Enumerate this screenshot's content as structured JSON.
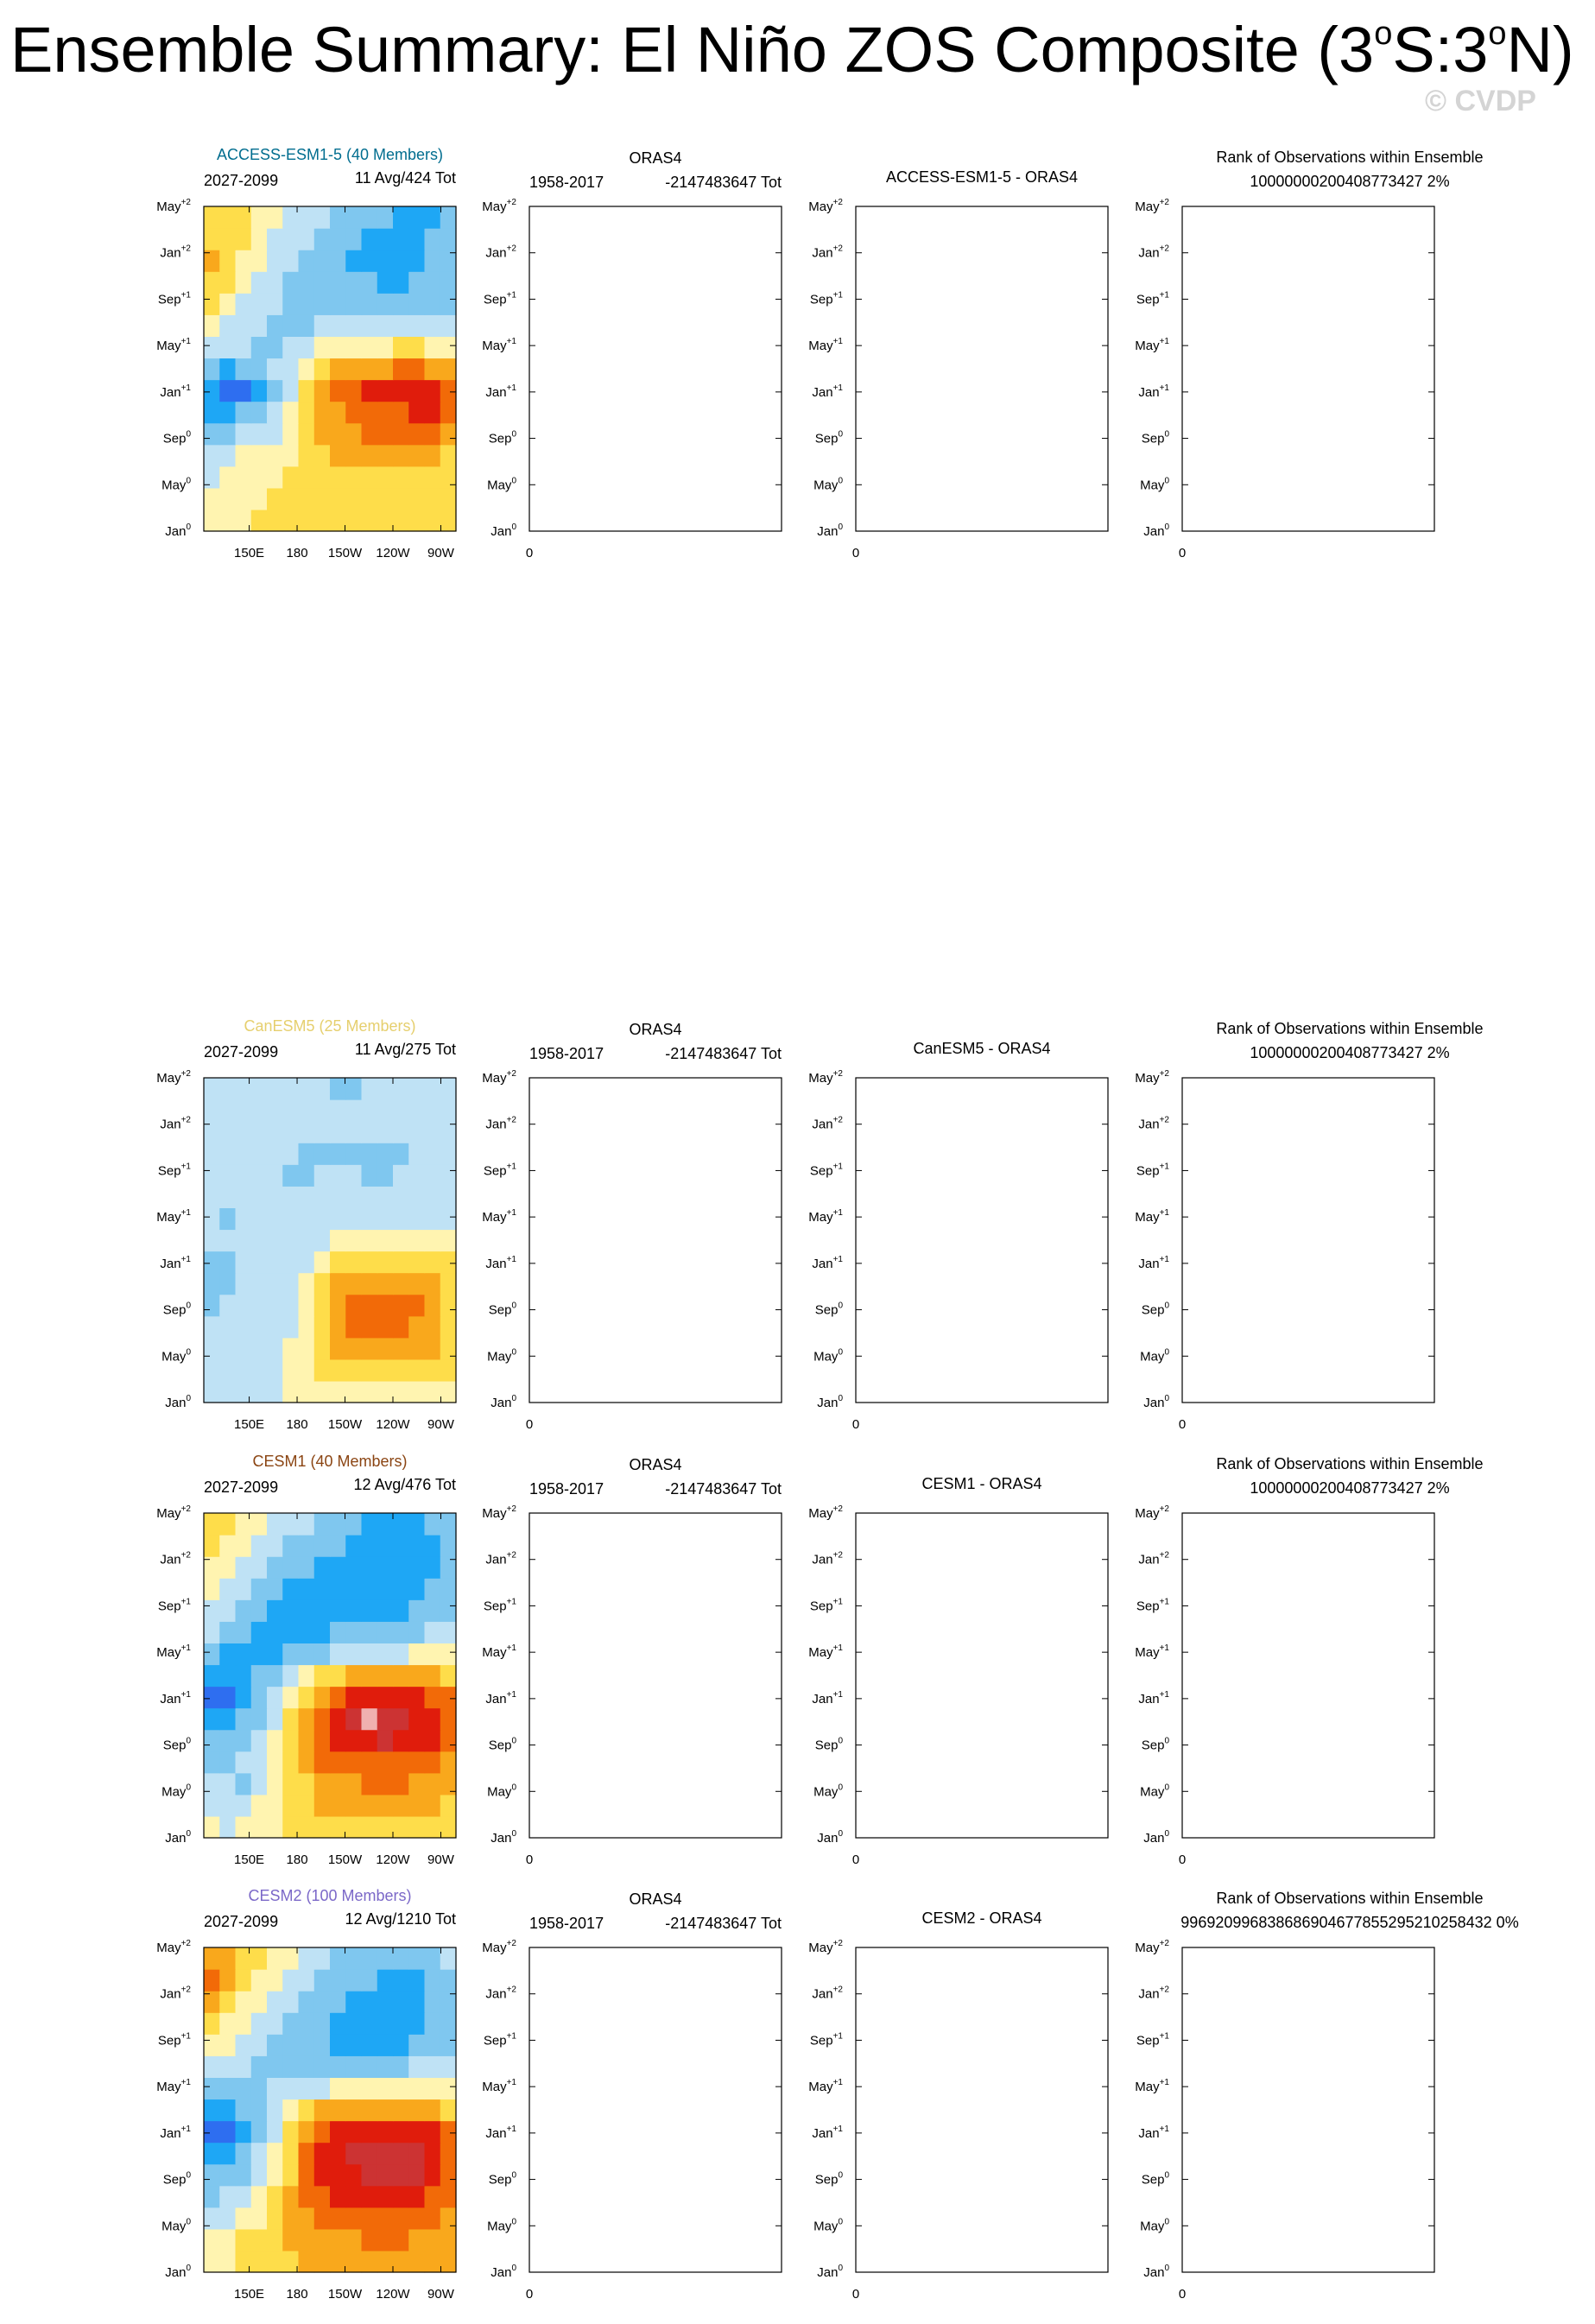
{
  "page": {
    "title_parts": [
      "Ensemble Summary: El Niño ZOS Composite (3",
      "o",
      "S:3",
      "o",
      "N)"
    ],
    "watermark": "© CVDP"
  },
  "colors": {
    "scale": [
      "#1f2bd6",
      "#2e6ef0",
      "#1ea7f5",
      "#7fc7ef",
      "#bfe2f5",
      "#fff4b0",
      "#fedd4a",
      "#f9a81c",
      "#f26a08",
      "#e01c0c",
      "#cc3333",
      "#f0b0b0"
    ],
    "ink": "#000000",
    "grid": "#888888"
  },
  "axes": {
    "y_tick_labels": [
      {
        "base": "Jan",
        "sup": "0"
      },
      {
        "base": "May",
        "sup": "0"
      },
      {
        "base": "Sep",
        "sup": "0"
      },
      {
        "base": "Jan",
        "sup": "+1"
      },
      {
        "base": "May",
        "sup": "+1"
      },
      {
        "base": "Sep",
        "sup": "+1"
      },
      {
        "base": "Jan",
        "sup": "+2"
      },
      {
        "base": "May",
        "sup": "+2"
      }
    ],
    "model_x_tick_labels": [
      "150E",
      "180",
      "150W",
      "120W",
      "90W"
    ],
    "empty_x_tick_label": "0"
  },
  "chart_data": [
    {
      "type": "heatmap",
      "title": "ACCESS-ESM1-5 (40 Members)",
      "title_color": "#006d8f",
      "left_label": "2027-2099",
      "right_label": "11 Avg/424 Tot",
      "xlabel": "",
      "ylabel": "",
      "x": [
        "130E",
        "140E",
        "150E",
        "160E",
        "170E",
        "180",
        "170W",
        "160W",
        "150W",
        "140W",
        "130W",
        "120W",
        "110W",
        "100W",
        "90W",
        "80W"
      ],
      "y": [
        "Jan0",
        "Mar0",
        "May0",
        "Jul0",
        "Sep0",
        "Nov0",
        "Jan+1",
        "Mar+1",
        "May+1",
        "Jul+1",
        "Sep+1",
        "Nov+1",
        "Jan+2",
        "Mar+2",
        "May+2"
      ],
      "z": [
        [
          5,
          5,
          5,
          6,
          6,
          6,
          6,
          6,
          6,
          6,
          6,
          6,
          6,
          6,
          6,
          6
        ],
        [
          5,
          5,
          5,
          5,
          6,
          6,
          6,
          6,
          6,
          6,
          6,
          6,
          6,
          6,
          6,
          6
        ],
        [
          4,
          5,
          5,
          5,
          5,
          6,
          6,
          6,
          6,
          6,
          6,
          6,
          6,
          6,
          6,
          6
        ],
        [
          4,
          4,
          5,
          5,
          5,
          5,
          6,
          6,
          7,
          7,
          7,
          7,
          7,
          7,
          7,
          6
        ],
        [
          3,
          3,
          4,
          4,
          4,
          5,
          6,
          7,
          7,
          7,
          8,
          8,
          8,
          8,
          8,
          7
        ],
        [
          2,
          2,
          3,
          3,
          4,
          5,
          6,
          7,
          7,
          8,
          8,
          8,
          8,
          9,
          9,
          8
        ],
        [
          2,
          1,
          1,
          2,
          3,
          4,
          6,
          7,
          8,
          8,
          9,
          9,
          9,
          9,
          9,
          8
        ],
        [
          3,
          2,
          3,
          3,
          4,
          4,
          5,
          6,
          7,
          7,
          7,
          7,
          8,
          8,
          7,
          7
        ],
        [
          4,
          4,
          4,
          3,
          3,
          4,
          4,
          5,
          5,
          5,
          5,
          5,
          6,
          6,
          5,
          5
        ],
        [
          5,
          4,
          4,
          4,
          3,
          3,
          3,
          4,
          4,
          4,
          4,
          4,
          4,
          4,
          4,
          4
        ],
        [
          6,
          5,
          4,
          4,
          4,
          3,
          3,
          3,
          3,
          3,
          3,
          3,
          3,
          3,
          3,
          3
        ],
        [
          6,
          6,
          5,
          4,
          4,
          3,
          3,
          3,
          3,
          3,
          3,
          2,
          2,
          3,
          3,
          3
        ],
        [
          7,
          6,
          5,
          5,
          4,
          4,
          3,
          3,
          3,
          2,
          2,
          2,
          2,
          2,
          3,
          3
        ],
        [
          6,
          6,
          6,
          5,
          4,
          4,
          4,
          3,
          3,
          3,
          2,
          2,
          2,
          2,
          3,
          3
        ],
        [
          6,
          6,
          6,
          5,
          5,
          4,
          4,
          4,
          3,
          3,
          3,
          3,
          2,
          2,
          2,
          3
        ]
      ]
    },
    {
      "type": "table",
      "title": "ORAS4",
      "left_label": "1958-2017",
      "right_label": "-2147483647 Tot",
      "xlabel": "",
      "ylabel": ""
    },
    {
      "type": "table",
      "title": "ACCESS-ESM1-5 - ORAS4",
      "xlabel": "",
      "ylabel": ""
    },
    {
      "type": "table",
      "title": "Rank of Observations within Ensemble",
      "subtitle": "10000000200408773427 2%",
      "xlabel": "",
      "ylabel": ""
    },
    {
      "type": "heatmap",
      "title": "CanESM5 (25 Members)",
      "title_color": "#e6cf6e",
      "left_label": "2027-2099",
      "right_label": "11 Avg/275 Tot",
      "xlabel": "",
      "ylabel": "",
      "x": [
        "130E",
        "140E",
        "150E",
        "160E",
        "170E",
        "180",
        "170W",
        "160W",
        "150W",
        "140W",
        "130W",
        "120W",
        "110W",
        "100W",
        "90W",
        "80W"
      ],
      "y": [
        "Jan0",
        "Mar0",
        "May0",
        "Jul0",
        "Sep0",
        "Nov0",
        "Jan+1",
        "Mar+1",
        "May+1",
        "Jul+1",
        "Sep+1",
        "Nov+1",
        "Jan+2",
        "Mar+2",
        "May+2"
      ],
      "z": [
        [
          4,
          4,
          4,
          4,
          4,
          5,
          5,
          5,
          5,
          5,
          5,
          5,
          5,
          5,
          5,
          5
        ],
        [
          4,
          4,
          4,
          4,
          4,
          5,
          5,
          6,
          6,
          6,
          6,
          6,
          6,
          6,
          6,
          6
        ],
        [
          4,
          4,
          4,
          4,
          4,
          5,
          5,
          6,
          7,
          7,
          7,
          7,
          7,
          7,
          7,
          6
        ],
        [
          4,
          4,
          4,
          4,
          4,
          4,
          5,
          6,
          7,
          8,
          8,
          8,
          8,
          7,
          7,
          6
        ],
        [
          3,
          4,
          4,
          4,
          4,
          4,
          5,
          6,
          7,
          8,
          8,
          8,
          8,
          8,
          7,
          6
        ],
        [
          3,
          3,
          4,
          4,
          4,
          4,
          5,
          6,
          7,
          7,
          7,
          7,
          7,
          7,
          7,
          6
        ],
        [
          3,
          3,
          4,
          4,
          4,
          4,
          4,
          5,
          6,
          6,
          6,
          6,
          6,
          6,
          6,
          6
        ],
        [
          4,
          4,
          4,
          4,
          4,
          4,
          4,
          4,
          5,
          5,
          5,
          5,
          5,
          5,
          5,
          5
        ],
        [
          4,
          3,
          4,
          4,
          4,
          4,
          4,
          4,
          4,
          4,
          4,
          4,
          4,
          4,
          4,
          4
        ],
        [
          4,
          4,
          4,
          4,
          4,
          4,
          4,
          4,
          4,
          4,
          4,
          4,
          4,
          4,
          4,
          4
        ],
        [
          4,
          4,
          4,
          4,
          4,
          3,
          3,
          4,
          4,
          4,
          3,
          3,
          4,
          4,
          4,
          4
        ],
        [
          4,
          4,
          4,
          4,
          4,
          4,
          3,
          3,
          3,
          3,
          3,
          3,
          3,
          4,
          4,
          4
        ],
        [
          4,
          4,
          4,
          4,
          4,
          4,
          4,
          4,
          4,
          4,
          4,
          4,
          4,
          4,
          4,
          4
        ],
        [
          4,
          4,
          4,
          4,
          4,
          4,
          4,
          4,
          4,
          4,
          4,
          4,
          4,
          4,
          4,
          4
        ],
        [
          4,
          4,
          4,
          4,
          4,
          4,
          4,
          4,
          3,
          3,
          4,
          4,
          4,
          4,
          4,
          4
        ]
      ]
    },
    {
      "type": "table",
      "title": "ORAS4",
      "left_label": "1958-2017",
      "right_label": "-2147483647 Tot",
      "xlabel": "",
      "ylabel": ""
    },
    {
      "type": "table",
      "title": "CanESM5 - ORAS4",
      "xlabel": "",
      "ylabel": ""
    },
    {
      "type": "table",
      "title": "Rank of Observations within Ensemble",
      "subtitle": "10000000200408773427 2%",
      "xlabel": "",
      "ylabel": ""
    },
    {
      "type": "heatmap",
      "title": "CESM1 (40 Members)",
      "title_color": "#8b4513",
      "left_label": "2027-2099",
      "right_label": "12 Avg/476 Tot",
      "xlabel": "",
      "ylabel": "",
      "x": [
        "130E",
        "140E",
        "150E",
        "160E",
        "170E",
        "180",
        "170W",
        "160W",
        "150W",
        "140W",
        "130W",
        "120W",
        "110W",
        "100W",
        "90W",
        "80W"
      ],
      "y": [
        "Jan0",
        "Mar0",
        "May0",
        "Jul0",
        "Sep0",
        "Nov0",
        "Jan+1",
        "Mar+1",
        "May+1",
        "Jul+1",
        "Sep+1",
        "Nov+1",
        "Jan+2",
        "Mar+2",
        "May+2"
      ],
      "z": [
        [
          5,
          4,
          5,
          5,
          5,
          6,
          6,
          6,
          6,
          6,
          6,
          6,
          6,
          6,
          6,
          6
        ],
        [
          4,
          4,
          4,
          5,
          5,
          6,
          6,
          7,
          7,
          7,
          7,
          7,
          7,
          7,
          7,
          6
        ],
        [
          4,
          4,
          3,
          4,
          5,
          6,
          6,
          7,
          7,
          7,
          8,
          8,
          8,
          7,
          7,
          7
        ],
        [
          3,
          3,
          4,
          4,
          5,
          6,
          7,
          8,
          8,
          8,
          8,
          8,
          8,
          8,
          8,
          7
        ],
        [
          3,
          3,
          3,
          4,
          5,
          6,
          7,
          8,
          9,
          9,
          9,
          10,
          9,
          9,
          9,
          8
        ],
        [
          2,
          2,
          3,
          3,
          4,
          6,
          7,
          8,
          9,
          10,
          11,
          10,
          10,
          9,
          9,
          8
        ],
        [
          1,
          1,
          2,
          3,
          4,
          5,
          6,
          7,
          8,
          9,
          9,
          9,
          9,
          9,
          8,
          8
        ],
        [
          2,
          2,
          2,
          3,
          3,
          4,
          5,
          6,
          6,
          7,
          7,
          7,
          7,
          7,
          7,
          6
        ],
        [
          3,
          2,
          2,
          2,
          2,
          3,
          3,
          3,
          4,
          4,
          4,
          4,
          4,
          5,
          5,
          5
        ],
        [
          4,
          3,
          3,
          2,
          2,
          2,
          2,
          2,
          3,
          3,
          3,
          3,
          3,
          3,
          4,
          4
        ],
        [
          4,
          4,
          3,
          3,
          2,
          2,
          2,
          2,
          2,
          2,
          2,
          2,
          2,
          3,
          3,
          3
        ],
        [
          5,
          4,
          4,
          3,
          3,
          2,
          2,
          2,
          2,
          2,
          2,
          2,
          2,
          2,
          3,
          3
        ],
        [
          5,
          5,
          4,
          4,
          3,
          3,
          3,
          2,
          2,
          2,
          2,
          2,
          2,
          2,
          2,
          3
        ],
        [
          6,
          5,
          5,
          4,
          4,
          3,
          3,
          3,
          3,
          2,
          2,
          2,
          2,
          2,
          2,
          3
        ],
        [
          6,
          6,
          5,
          5,
          4,
          4,
          4,
          3,
          3,
          3,
          2,
          2,
          2,
          2,
          3,
          3
        ]
      ]
    },
    {
      "type": "table",
      "title": "ORAS4",
      "left_label": "1958-2017",
      "right_label": "-2147483647 Tot",
      "xlabel": "",
      "ylabel": ""
    },
    {
      "type": "table",
      "title": "CESM1 - ORAS4",
      "xlabel": "",
      "ylabel": ""
    },
    {
      "type": "table",
      "title": "Rank of Observations within Ensemble",
      "subtitle": "10000000200408773427 2%",
      "xlabel": "",
      "ylabel": ""
    },
    {
      "type": "heatmap",
      "title": "CESM2 (100 Members)",
      "title_color": "#7b68c8",
      "left_label": "2027-2099",
      "right_label": "12 Avg/1210 Tot",
      "xlabel": "",
      "ylabel": "",
      "x": [
        "130E",
        "140E",
        "150E",
        "160E",
        "170E",
        "180",
        "170W",
        "160W",
        "150W",
        "140W",
        "130W",
        "120W",
        "110W",
        "100W",
        "90W",
        "80W"
      ],
      "y": [
        "Jan0",
        "Mar0",
        "May0",
        "Jul0",
        "Sep0",
        "Nov0",
        "Jan+1",
        "Mar+1",
        "May+1",
        "Jul+1",
        "Sep+1",
        "Nov+1",
        "Jan+2",
        "Mar+2",
        "May+2"
      ],
      "z": [
        [
          5,
          5,
          6,
          6,
          6,
          6,
          7,
          7,
          7,
          7,
          7,
          7,
          7,
          7,
          7,
          7
        ],
        [
          5,
          5,
          6,
          6,
          6,
          7,
          7,
          7,
          7,
          7,
          8,
          8,
          8,
          7,
          7,
          7
        ],
        [
          4,
          4,
          5,
          5,
          6,
          7,
          7,
          8,
          8,
          8,
          8,
          8,
          8,
          8,
          8,
          7
        ],
        [
          3,
          4,
          4,
          5,
          6,
          7,
          8,
          8,
          9,
          9,
          9,
          9,
          9,
          9,
          8,
          8
        ],
        [
          3,
          3,
          3,
          4,
          5,
          6,
          8,
          9,
          9,
          9,
          10,
          10,
          10,
          10,
          9,
          8
        ],
        [
          2,
          2,
          3,
          4,
          5,
          6,
          8,
          9,
          9,
          10,
          10,
          10,
          10,
          10,
          9,
          8
        ],
        [
          1,
          1,
          2,
          3,
          4,
          6,
          7,
          8,
          9,
          9,
          9,
          9,
          9,
          9,
          9,
          8
        ],
        [
          2,
          2,
          3,
          3,
          4,
          5,
          6,
          7,
          7,
          7,
          7,
          7,
          7,
          7,
          7,
          6
        ],
        [
          3,
          3,
          3,
          3,
          4,
          4,
          4,
          4,
          5,
          5,
          5,
          5,
          5,
          5,
          5,
          5
        ],
        [
          4,
          4,
          4,
          3,
          3,
          3,
          3,
          3,
          3,
          3,
          3,
          3,
          3,
          4,
          4,
          4
        ],
        [
          5,
          5,
          4,
          4,
          3,
          3,
          3,
          3,
          2,
          2,
          2,
          2,
          2,
          3,
          3,
          3
        ],
        [
          6,
          5,
          5,
          4,
          4,
          3,
          3,
          3,
          2,
          2,
          2,
          2,
          2,
          2,
          3,
          3
        ],
        [
          7,
          6,
          5,
          5,
          4,
          4,
          3,
          3,
          3,
          2,
          2,
          2,
          2,
          2,
          3,
          3
        ],
        [
          8,
          7,
          6,
          5,
          5,
          4,
          4,
          3,
          3,
          3,
          3,
          2,
          2,
          2,
          3,
          3
        ],
        [
          7,
          7,
          6,
          6,
          5,
          5,
          4,
          4,
          3,
          3,
          3,
          3,
          3,
          3,
          3,
          4
        ]
      ]
    },
    {
      "type": "table",
      "title": "ORAS4",
      "left_label": "1958-2017",
      "right_label": "-2147483647 Tot",
      "xlabel": "",
      "ylabel": ""
    },
    {
      "type": "table",
      "title": "CESM2 - ORAS4",
      "xlabel": "",
      "ylabel": ""
    },
    {
      "type": "table",
      "title": "Rank of Observations within Ensemble",
      "subtitle": "996920996838686904677855295210258432 0%",
      "xlabel": "",
      "ylabel": ""
    }
  ]
}
